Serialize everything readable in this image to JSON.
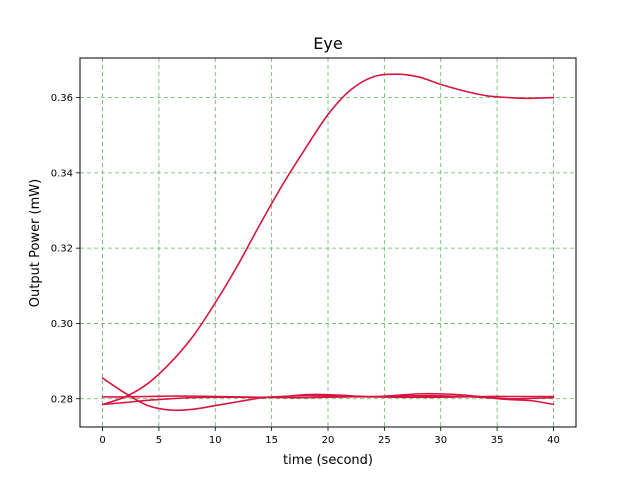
{
  "chart_data": {
    "type": "line",
    "title": "Eye",
    "xlabel": "time (second)",
    "ylabel": "Output Power (mW)",
    "xlim": [
      -2,
      42
    ],
    "ylim": [
      0.2725,
      0.3705
    ],
    "xticks": [
      0,
      5,
      10,
      15,
      20,
      25,
      30,
      35,
      40
    ],
    "yticks": [
      0.28,
      0.3,
      0.32,
      0.34,
      0.36
    ],
    "ytick_labels": [
      "0.28",
      "0.30",
      "0.32",
      "0.34",
      "0.36"
    ],
    "grid": true,
    "grid_color": "#5cb85c",
    "line_color": "#d6163f",
    "series": [
      {
        "x": [
          0,
          2,
          4,
          6,
          8,
          10,
          12,
          14,
          16,
          18,
          20,
          22,
          24,
          26,
          28,
          30,
          32,
          34,
          36,
          38,
          40
        ],
        "values": [
          0.2785,
          0.2805,
          0.284,
          0.2895,
          0.2965,
          0.3055,
          0.3155,
          0.3265,
          0.337,
          0.3465,
          0.3555,
          0.362,
          0.3655,
          0.3662,
          0.3655,
          0.3635,
          0.3618,
          0.3605,
          0.36,
          0.3598,
          0.36
        ]
      },
      {
        "x": [
          0,
          2,
          4,
          6,
          8,
          10,
          12,
          14,
          16,
          18,
          20,
          22,
          24,
          26,
          28,
          30,
          32,
          34,
          36,
          38,
          40
        ],
        "values": [
          0.2855,
          0.2815,
          0.2782,
          0.277,
          0.2772,
          0.2782,
          0.2792,
          0.2802,
          0.2806,
          0.2808,
          0.2808,
          0.2806,
          0.2806,
          0.2807,
          0.2808,
          0.2808,
          0.2806,
          0.2803,
          0.2798,
          0.2795,
          0.2785
        ]
      },
      {
        "x": [
          0,
          2,
          4,
          6,
          8,
          10,
          12,
          14,
          16,
          18,
          20,
          22,
          24,
          26,
          28,
          30,
          32,
          34,
          36,
          38,
          40
        ],
        "values": [
          0.2785,
          0.279,
          0.2796,
          0.28,
          0.2803,
          0.2804,
          0.2804,
          0.2804,
          0.2806,
          0.2811,
          0.2811,
          0.2808,
          0.2805,
          0.2809,
          0.2813,
          0.2813,
          0.281,
          0.2804,
          0.28,
          0.2801,
          0.2803
        ]
      },
      {
        "x": [
          0,
          2,
          4,
          6,
          8,
          10,
          12,
          14,
          16,
          18,
          20,
          22,
          24,
          26,
          28,
          30,
          32,
          34,
          36,
          38,
          40
        ],
        "values": [
          0.2805,
          0.2805,
          0.2806,
          0.2807,
          0.2807,
          0.2806,
          0.2805,
          0.2804,
          0.2803,
          0.2803,
          0.2804,
          0.2805,
          0.2805,
          0.2804,
          0.2804,
          0.2804,
          0.2805,
          0.2806,
          0.2806,
          0.2806,
          0.2806
        ]
      }
    ]
  }
}
